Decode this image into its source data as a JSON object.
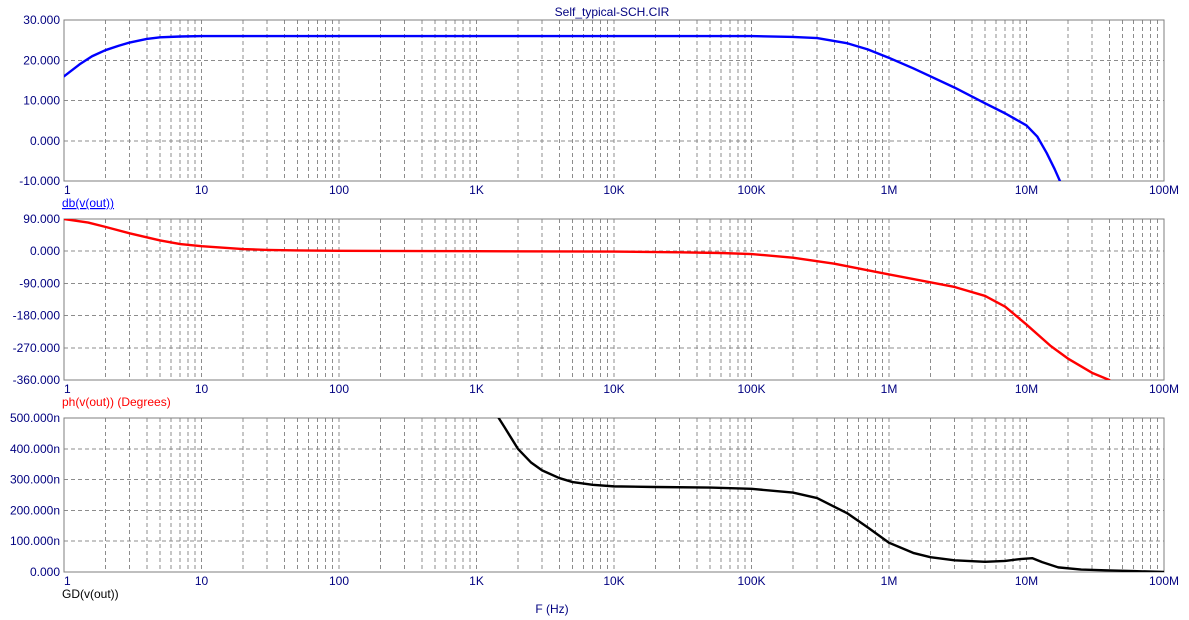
{
  "title": "Self_typical-SCH.CIR",
  "x_axis_label": "F (Hz)",
  "colors": {
    "text": "#000080",
    "grid": "#8c8c8c",
    "frame": "#7f7f7f",
    "mag": "#0000ff",
    "phase": "#ff0000",
    "gd": "#000000"
  },
  "chart_data": [
    {
      "type": "line",
      "ylabel": "db(v(out))",
      "xlabel": "",
      "xscale": "log",
      "xlim": [
        1,
        100000000
      ],
      "ylim": [
        -10,
        30
      ],
      "x_ticks": [
        "1",
        "10",
        "100",
        "1K",
        "10K",
        "100K",
        "1M",
        "10M",
        "100M"
      ],
      "y_ticks": [
        "30.000",
        "20.000",
        "10.000",
        "0.000",
        "-10.000"
      ],
      "grid": true,
      "series": [
        {
          "color": "#0000ff",
          "x": [
            1,
            1.3,
            1.6,
            2,
            2.5,
            3,
            4,
            5,
            7,
            10,
            20,
            100,
            1000,
            10000,
            100000,
            200000,
            300000,
            500000,
            700000,
            1000000,
            1500000,
            2000000,
            3000000,
            5000000,
            7000000,
            10000000,
            12000000,
            14000000,
            16000000,
            17500000
          ],
          "values": [
            16,
            19,
            21,
            22.5,
            23.6,
            24.4,
            25.3,
            25.7,
            25.9,
            26,
            26,
            26,
            26,
            26,
            26,
            25.8,
            25.5,
            24.2,
            22.7,
            20.6,
            18,
            16,
            13.2,
            9.3,
            6.8,
            3.8,
            1,
            -3,
            -7,
            -10
          ]
        }
      ]
    },
    {
      "type": "line",
      "ylabel": "ph(v(out)) (Degrees)",
      "xlabel": "",
      "xscale": "log",
      "xlim": [
        1,
        100000000
      ],
      "ylim": [
        -360,
        90
      ],
      "x_ticks": [
        "1",
        "10",
        "100",
        "1K",
        "10K",
        "100K",
        "1M",
        "10M",
        "100M"
      ],
      "y_ticks": [
        "90.000",
        "0.000",
        "-90.000",
        "-180.000",
        "-270.000",
        "-360.000"
      ],
      "grid": true,
      "series": [
        {
          "color": "#ff0000",
          "x": [
            1,
            1.5,
            2,
            3,
            5,
            7,
            10,
            20,
            30,
            50,
            100,
            1000,
            10000,
            30000,
            60000,
            100000,
            200000,
            400000,
            1000000,
            3000000,
            5000000,
            7000000,
            10000000,
            15000000,
            20000000,
            30000000,
            40000000
          ],
          "values": [
            90,
            80,
            68,
            50,
            30,
            20,
            14,
            6,
            3.5,
            2,
            1,
            0,
            -1,
            -3,
            -5,
            -8,
            -18,
            -35,
            -65,
            -100,
            -125,
            -155,
            -205,
            -265,
            -300,
            -340,
            -360
          ]
        }
      ]
    },
    {
      "type": "line",
      "ylabel": "GD(v(out))",
      "xlabel": "F (Hz)",
      "xscale": "log",
      "xlim": [
        1,
        100000000
      ],
      "ylim": [
        0,
        500
      ],
      "x_ticks": [
        "1",
        "10",
        "100",
        "1K",
        "10K",
        "100K",
        "1M",
        "10M",
        "100M"
      ],
      "y_ticks": [
        "500.000n",
        "400.000n",
        "300.000n",
        "200.000n",
        "100.000n",
        "0.000"
      ],
      "grid": true,
      "series": [
        {
          "color": "#000000",
          "x": [
            1450,
            1600,
            2000,
            2500,
            3000,
            4000,
            5000,
            7000,
            10000,
            20000,
            50000,
            100000,
            200000,
            300000,
            500000,
            700000,
            1000000,
            1500000,
            2000000,
            3000000,
            5000000,
            7000000,
            9000000,
            11000000,
            13000000,
            17000000,
            25000000,
            40000000,
            60000000,
            100000000
          ],
          "values": [
            500,
            470,
            400,
            355,
            330,
            305,
            292,
            283,
            278,
            276,
            274,
            270,
            258,
            240,
            190,
            145,
            95,
            62,
            48,
            38,
            33,
            36,
            42,
            45,
            32,
            15,
            8,
            5,
            3,
            0
          ]
        }
      ]
    }
  ]
}
